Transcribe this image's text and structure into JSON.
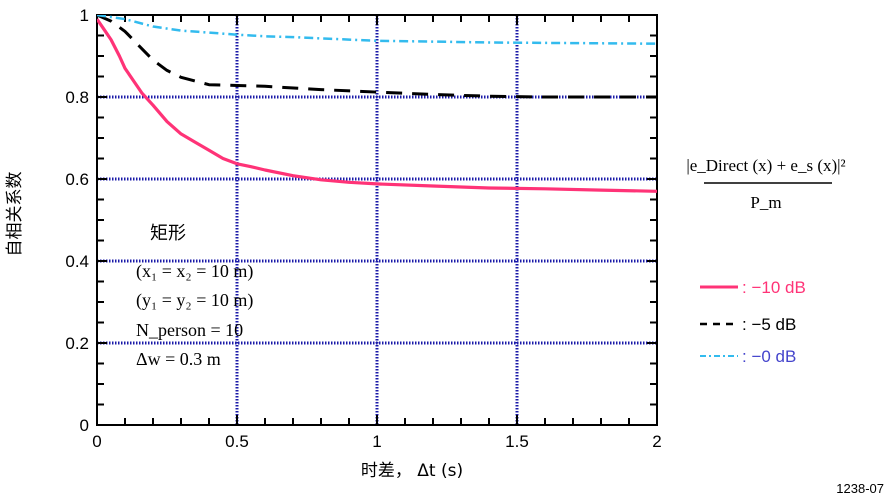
{
  "chart_data": {
    "type": "line",
    "xlabel": "时差， Δt (s)",
    "ylabel": "自相关系数",
    "xlim": [
      0,
      2
    ],
    "ylim": [
      0,
      1
    ],
    "x_ticks": [
      "0",
      "0.5",
      "1",
      "1.5",
      "2"
    ],
    "y_ticks": [
      "0",
      "0.2",
      "0.4",
      "0.6",
      "0.8",
      "1"
    ],
    "grid": true,
    "legend_position": "right",
    "series": [
      {
        "name": ": −10 dB",
        "color": "#ff3377",
        "style": "solid",
        "x": [
          0,
          0.02,
          0.05,
          0.08,
          0.1,
          0.13,
          0.16,
          0.2,
          0.25,
          0.3,
          0.35,
          0.4,
          0.45,
          0.5,
          0.55,
          0.6,
          0.7,
          0.8,
          0.9,
          1.0,
          1.2,
          1.4,
          1.6,
          1.8,
          2.0
        ],
        "values": [
          0.99,
          0.97,
          0.94,
          0.9,
          0.87,
          0.84,
          0.81,
          0.78,
          0.74,
          0.71,
          0.69,
          0.67,
          0.65,
          0.637,
          0.63,
          0.622,
          0.608,
          0.598,
          0.592,
          0.588,
          0.583,
          0.578,
          0.576,
          0.573,
          0.57
        ]
      },
      {
        "name": ": −5 dB",
        "color": "#000000",
        "style": "dashed",
        "x": [
          0,
          0.05,
          0.1,
          0.15,
          0.2,
          0.25,
          0.3,
          0.4,
          0.5,
          0.6,
          0.8,
          1.0,
          1.2,
          1.4,
          1.6,
          1.8,
          2.0
        ],
        "values": [
          1.0,
          0.985,
          0.96,
          0.925,
          0.89,
          0.865,
          0.848,
          0.83,
          0.828,
          0.826,
          0.818,
          0.812,
          0.806,
          0.802,
          0.8,
          0.8,
          0.8
        ]
      },
      {
        "name": ": −0 dB",
        "color": "#33bbee",
        "style": "dash-dot",
        "x": [
          0,
          0.1,
          0.2,
          0.3,
          0.4,
          0.5,
          0.6,
          0.7,
          0.8,
          0.9,
          1.0,
          1.2,
          1.4,
          1.6,
          1.8,
          2.0
        ],
        "values": [
          1.0,
          0.99,
          0.972,
          0.962,
          0.957,
          0.952,
          0.948,
          0.946,
          0.943,
          0.94,
          0.937,
          0.935,
          0.933,
          0.932,
          0.931,
          0.93
        ]
      }
    ],
    "annotations": {
      "title": "矩形",
      "lines": [
        "(x₁ = x₂ = 10 m)",
        "(y₁ = y₂ = 10 m)",
        "N_person = 10",
        "Δw = 0.3 m"
      ]
    },
    "formula": {
      "numerator": "|e_Direct (x) + e_s (x)|²",
      "denominator": "P_m"
    },
    "figure_id": "1238-07"
  }
}
